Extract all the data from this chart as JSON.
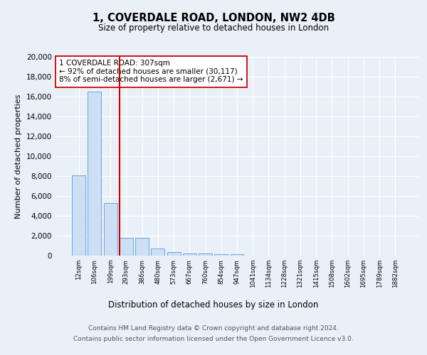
{
  "title": "1, COVERDALE ROAD, LONDON, NW2 4DB",
  "subtitle": "Size of property relative to detached houses in London",
  "xlabel": "Distribution of detached houses by size in London",
  "ylabel": "Number of detached properties",
  "bar_labels": [
    "12sqm",
    "106sqm",
    "199sqm",
    "293sqm",
    "386sqm",
    "480sqm",
    "573sqm",
    "667sqm",
    "760sqm",
    "854sqm",
    "947sqm",
    "1041sqm",
    "1134sqm",
    "1228sqm",
    "1321sqm",
    "1415sqm",
    "1508sqm",
    "1602sqm",
    "1695sqm",
    "1789sqm",
    "1882sqm"
  ],
  "bar_values": [
    8100,
    16500,
    5300,
    1800,
    1800,
    700,
    350,
    250,
    200,
    175,
    150,
    0,
    0,
    0,
    0,
    0,
    0,
    0,
    0,
    0,
    0
  ],
  "bar_color": "#ccdff5",
  "bar_edge_color": "#5b9bd5",
  "highlight_line_color": "#cc0000",
  "annotation_text": "1 COVERDALE ROAD: 307sqm\n← 92% of detached houses are smaller (30,117)\n8% of semi-detached houses are larger (2,671) →",
  "annotation_box_color": "#ffffff",
  "annotation_box_edge": "#cc0000",
  "ylim": [
    0,
    20000
  ],
  "yticks": [
    0,
    2000,
    4000,
    6000,
    8000,
    10000,
    12000,
    14000,
    16000,
    18000,
    20000
  ],
  "footer_line1": "Contains HM Land Registry data © Crown copyright and database right 2024.",
  "footer_line2": "Contains public sector information licensed under the Open Government Licence v3.0.",
  "bg_color": "#eaf0f8",
  "plot_bg_color": "#eaf0f8"
}
